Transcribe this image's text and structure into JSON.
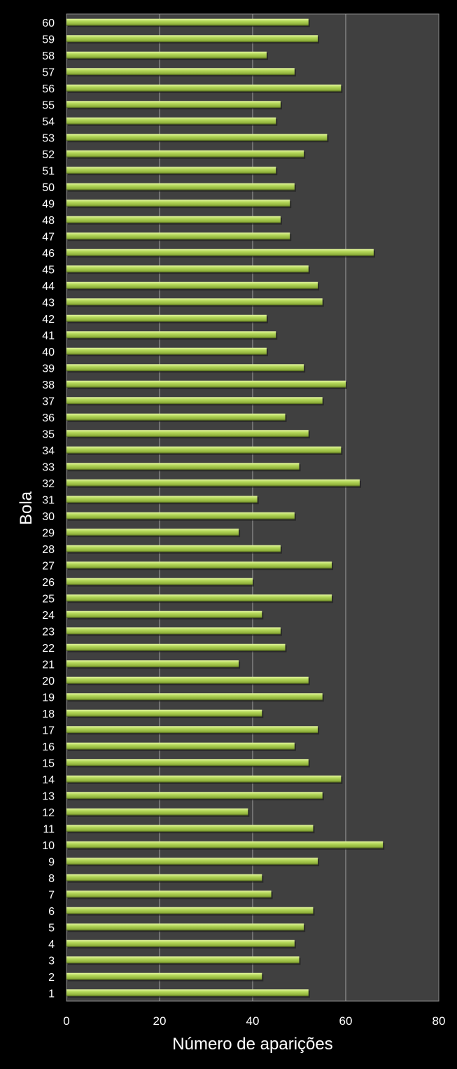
{
  "chart_data": {
    "type": "bar",
    "orientation": "horizontal",
    "title": "",
    "xlabel": "Número de aparições",
    "ylabel": "Bola",
    "xlim": [
      0,
      80
    ],
    "xticks": [
      0,
      20,
      40,
      60,
      80
    ],
    "grid": true,
    "colors": {
      "bar": "#b4d85a",
      "plot_bg": "#404040",
      "background": "#000000",
      "grid": "#a0a0a0"
    },
    "categories": [
      "1",
      "2",
      "3",
      "4",
      "5",
      "6",
      "7",
      "8",
      "9",
      "10",
      "11",
      "12",
      "13",
      "14",
      "15",
      "16",
      "17",
      "18",
      "19",
      "20",
      "21",
      "22",
      "23",
      "24",
      "25",
      "26",
      "27",
      "28",
      "29",
      "30",
      "31",
      "32",
      "33",
      "34",
      "35",
      "36",
      "37",
      "38",
      "39",
      "40",
      "41",
      "42",
      "43",
      "44",
      "45",
      "46",
      "47",
      "48",
      "49",
      "50",
      "51",
      "52",
      "53",
      "54",
      "55",
      "56",
      "57",
      "58",
      "59",
      "60"
    ],
    "values": [
      52,
      42,
      50,
      49,
      51,
      53,
      44,
      42,
      54,
      68,
      53,
      39,
      55,
      59,
      52,
      49,
      54,
      42,
      55,
      52,
      37,
      47,
      46,
      42,
      57,
      40,
      57,
      46,
      37,
      49,
      41,
      63,
      50,
      59,
      52,
      47,
      55,
      60,
      51,
      43,
      45,
      43,
      55,
      54,
      52,
      66,
      48,
      46,
      48,
      49,
      45,
      51,
      56,
      45,
      46,
      59,
      49,
      43,
      54,
      52
    ]
  }
}
